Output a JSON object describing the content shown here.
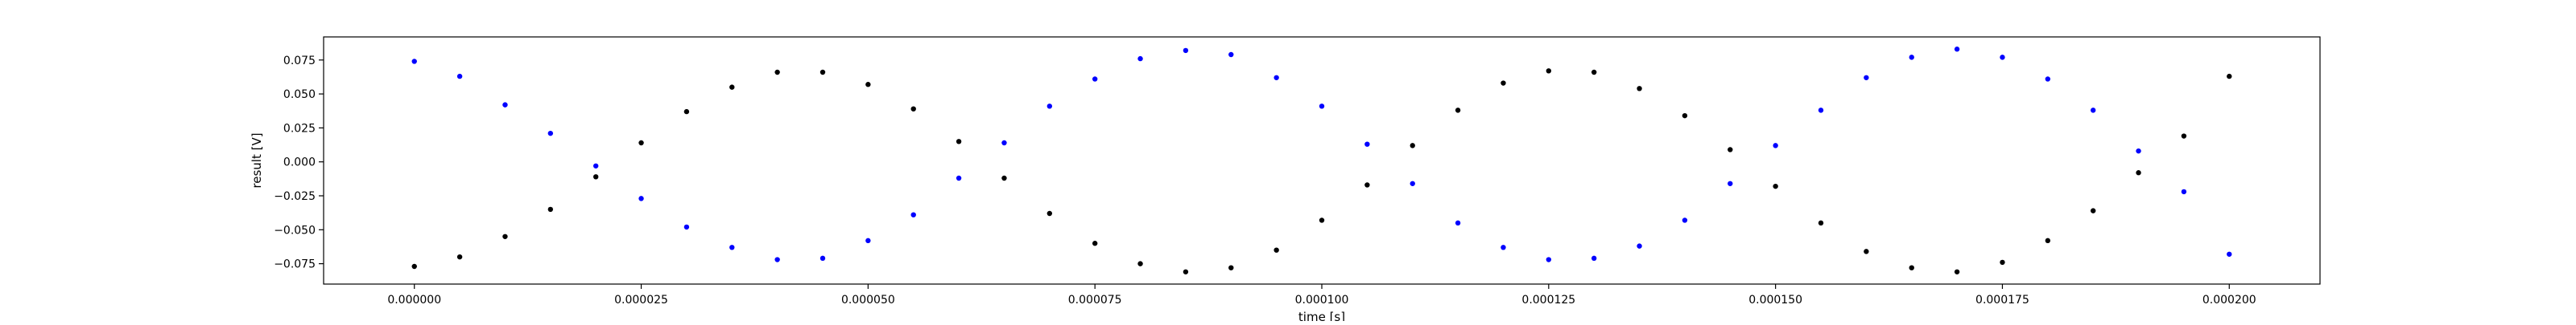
{
  "chart_data": {
    "type": "scatter",
    "title": "",
    "xlabel": "time [s]",
    "ylabel": "result [V]",
    "xlim": [
      -1e-05,
      0.00021
    ],
    "ylim": [
      -0.09,
      0.092
    ],
    "grid": false,
    "x_ticks": [
      0,
      2.5e-05,
      5e-05,
      7.5e-05,
      0.0001,
      0.000125,
      0.00015,
      0.000175,
      0.0002
    ],
    "x_tick_labels": [
      "0.000000",
      "0.000025",
      "0.000050",
      "0.000075",
      "0.000100",
      "0.000125",
      "0.000150",
      "0.000175",
      "0.000200"
    ],
    "y_ticks": [
      -0.075,
      -0.05,
      -0.025,
      0,
      0.025,
      0.05,
      0.075
    ],
    "y_tick_labels": [
      "−0.075",
      "−0.050",
      "−0.025",
      "0.000",
      "0.025",
      "0.050",
      "0.075"
    ],
    "series": [
      {
        "color": "#0000ff",
        "marker": "dot",
        "x": [
          0,
          5e-06,
          1e-05,
          1.5e-05,
          2e-05,
          2.5e-05,
          3e-05,
          3.5e-05,
          4e-05,
          4.5e-05,
          5e-05,
          5.5e-05,
          6e-05,
          6.5e-05,
          7e-05,
          7.5e-05,
          8e-05,
          8.5e-05,
          9e-05,
          9.5e-05,
          0.0001,
          0.000105,
          0.00011,
          0.000115,
          0.00012,
          0.000125,
          0.00013,
          0.000135,
          0.00014,
          0.000145,
          0.00015,
          0.000155,
          0.00016,
          0.000165,
          0.00017,
          0.000175,
          0.00018,
          0.000185,
          0.00019,
          0.000195,
          0.0002
        ],
        "y": [
          0.074,
          0.063,
          0.042,
          0.021,
          -0.003,
          -0.027,
          -0.048,
          -0.063,
          -0.072,
          -0.071,
          -0.058,
          -0.039,
          -0.012,
          0.014,
          0.041,
          0.061,
          0.076,
          0.082,
          0.079,
          0.062,
          0.041,
          0.013,
          -0.016,
          -0.045,
          -0.063,
          -0.072,
          -0.071,
          -0.062,
          -0.043,
          -0.016,
          0.012,
          0.038,
          0.062,
          0.077,
          0.083,
          0.077,
          0.061,
          0.038,
          0.008,
          -0.022,
          -0.068
        ]
      },
      {
        "color": "#000000",
        "marker": "dot",
        "x": [
          0,
          5e-06,
          1e-05,
          1.5e-05,
          2e-05,
          2.5e-05,
          3e-05,
          3.5e-05,
          4e-05,
          4.5e-05,
          5e-05,
          5.5e-05,
          6e-05,
          6.5e-05,
          7e-05,
          7.5e-05,
          8e-05,
          8.5e-05,
          9e-05,
          9.5e-05,
          0.0001,
          0.000105,
          0.00011,
          0.000115,
          0.00012,
          0.000125,
          0.00013,
          0.000135,
          0.00014,
          0.000145,
          0.00015,
          0.000155,
          0.00016,
          0.000165,
          0.00017,
          0.000175,
          0.00018,
          0.000185,
          0.00019,
          0.000195,
          0.0002
        ],
        "y": [
          -0.077,
          -0.07,
          -0.055,
          -0.035,
          -0.011,
          0.014,
          0.037,
          0.055,
          0.066,
          0.066,
          0.057,
          0.039,
          0.015,
          -0.012,
          -0.038,
          -0.06,
          -0.075,
          -0.081,
          -0.078,
          -0.065,
          -0.043,
          -0.017,
          0.012,
          0.038,
          0.058,
          0.067,
          0.066,
          0.054,
          0.034,
          0.009,
          -0.018,
          -0.045,
          -0.066,
          -0.078,
          -0.081,
          -0.074,
          -0.058,
          -0.036,
          -0.008,
          0.019,
          0.063
        ]
      }
    ]
  }
}
